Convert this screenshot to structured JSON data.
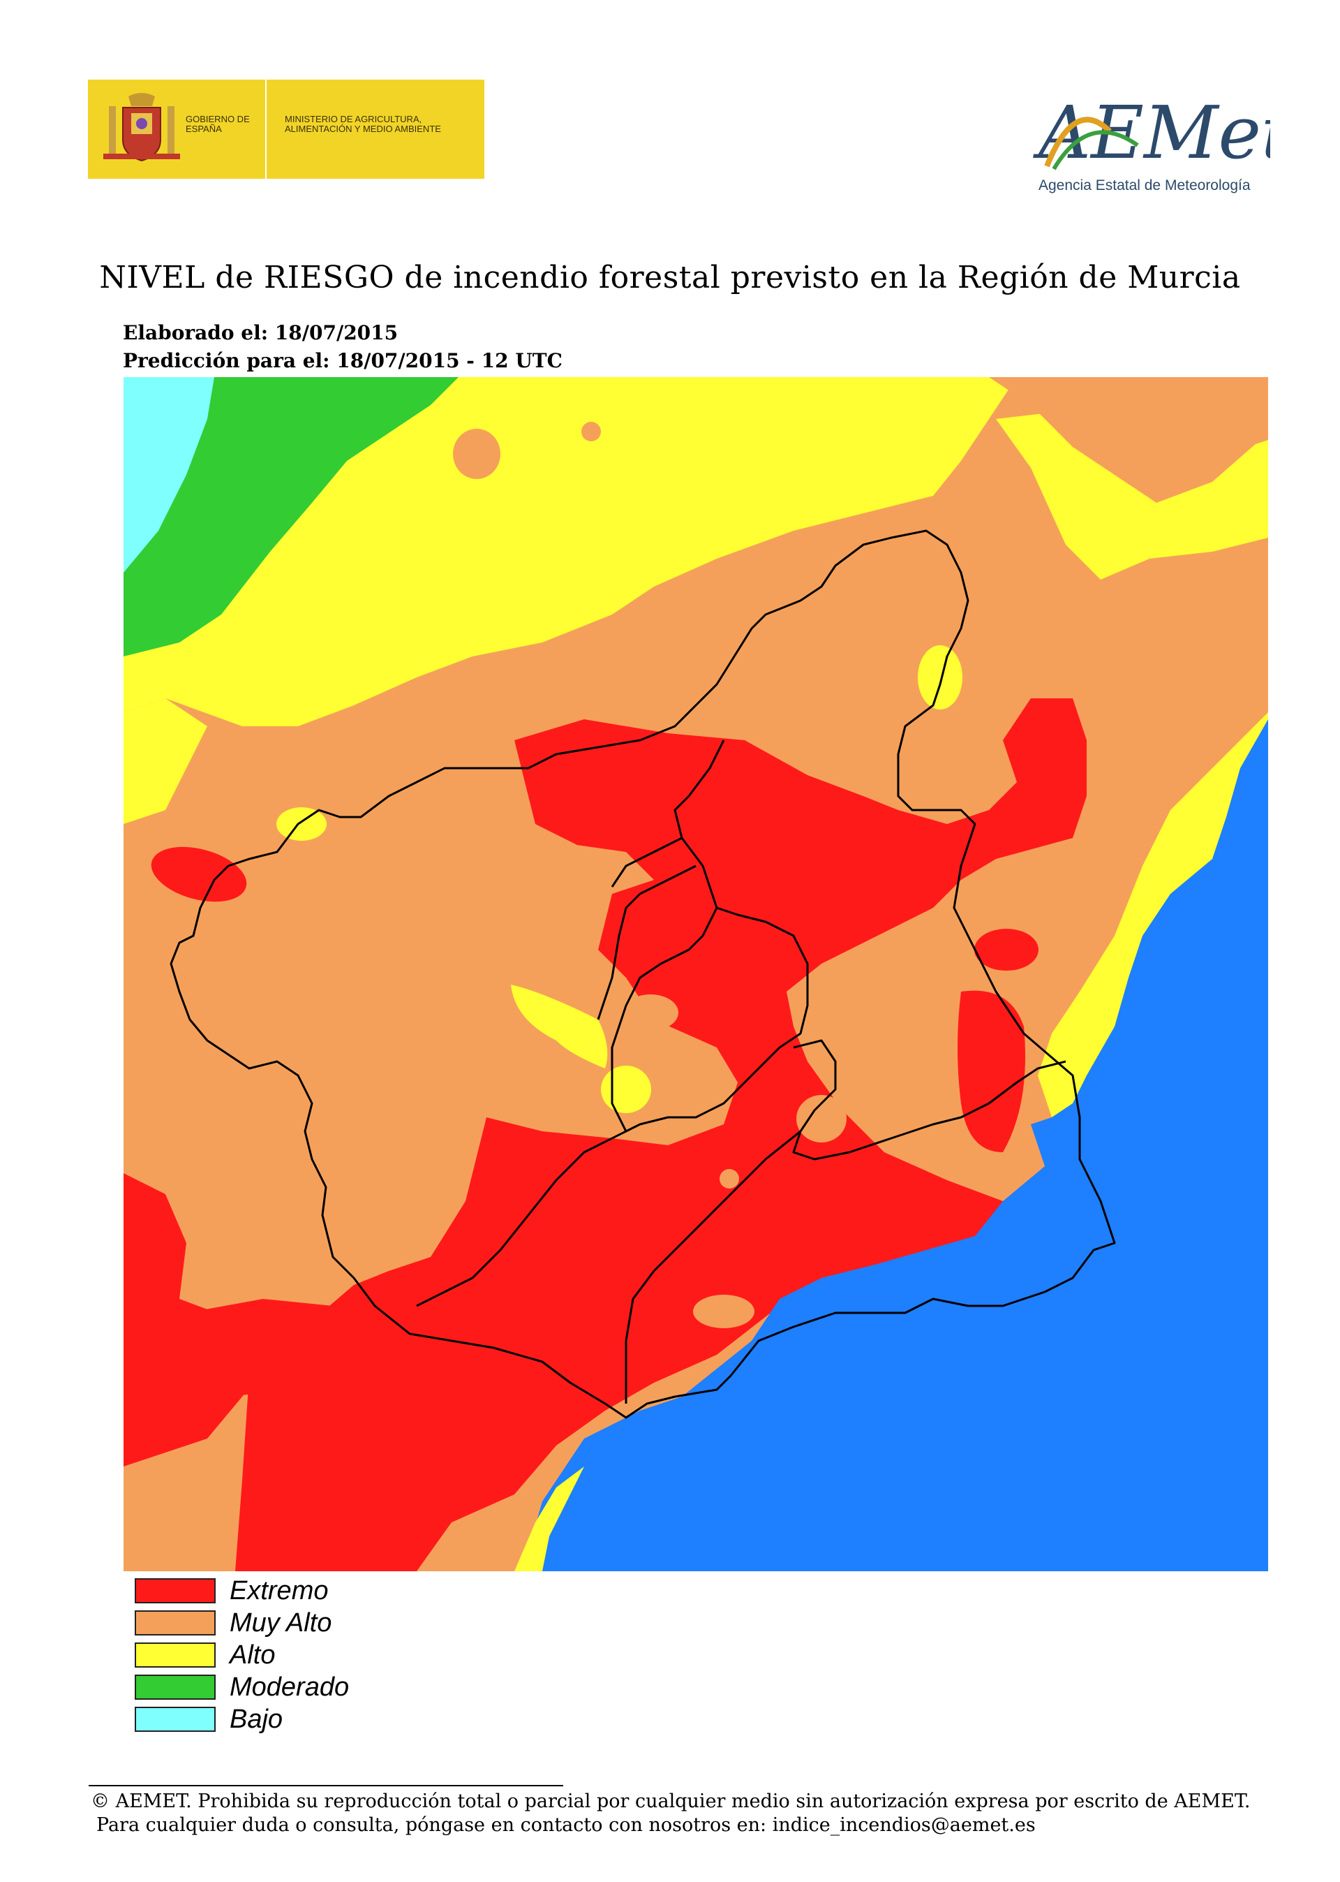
{
  "header": {
    "gov_line1": "Gobierno de España",
    "gov_line2": "Ministerio de Agricultura, Alimentación y Medio Ambiente",
    "agency_logo": "AEMet",
    "agency_name": "Agencia Estatal de Meteorología"
  },
  "title": "NIVEL de RIESGO de incendio forestal previsto en la Región de Murcia",
  "meta": {
    "elaborado": "Elaborado el: 18/07/2015",
    "prediccion": "Predicción para el: 18/07/2015 - 12 UTC"
  },
  "legend": [
    {
      "label": "Extremo",
      "color": "#ff1a1a"
    },
    {
      "label": "Muy Alto",
      "color": "#f5a05a"
    },
    {
      "label": "Alto",
      "color": "#ffff33"
    },
    {
      "label": "Moderado",
      "color": "#33cc33"
    },
    {
      "label": "Bajo",
      "color": "#80ffff"
    }
  ],
  "map_colors": {
    "sea": "#1e7fff",
    "extremo": "#ff1a1a",
    "muy_alto": "#f5a05a",
    "alto": "#ffff33",
    "moderado": "#33cc33",
    "bajo": "#80ffff"
  },
  "footer": {
    "line1": "© AEMET. Prohibida su reproducción total o parcial por cualquier medio sin autorización expresa por escrito de AEMET.",
    "line2": "Para cualquier duda o consulta, póngase en contacto con nosotros en: indice_incendios@aemet.es"
  }
}
